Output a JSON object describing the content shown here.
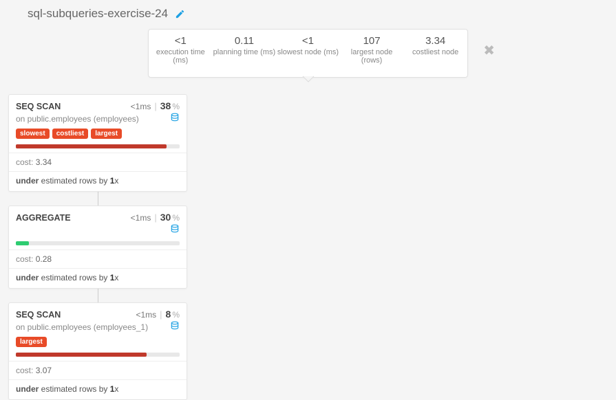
{
  "title": "sql-subqueries-exercise-24",
  "colors": {
    "edit_icon": "#1ca0e3",
    "disk_icon": "#1ca0e3",
    "tag_bg": "#e84b28",
    "bar_red": "#c0392b",
    "bar_green": "#2ecc71",
    "bar_track": "#e8e8e8"
  },
  "stats": [
    {
      "value": "<1",
      "label": "execution time (ms)"
    },
    {
      "value": "0.11",
      "label": "planning time (ms)"
    },
    {
      "value": "<1",
      "label": "slowest node (ms)"
    },
    {
      "value": "107",
      "label": "largest node (rows)"
    },
    {
      "value": "3.34",
      "label": "costliest node"
    }
  ],
  "nodes": [
    {
      "title": "SEQ SCAN",
      "time": "<1ms",
      "pct": "38",
      "sub": "on public.employees (employees)",
      "show_disk": true,
      "tags": [
        "slowest",
        "costliest",
        "largest"
      ],
      "bar_pct": 92,
      "bar_color": "#c0392b",
      "cost": "3.34",
      "est_prefix": "under",
      "est_mid": " estimated rows by ",
      "est_factor": "1",
      "est_suffix": "x"
    },
    {
      "title": "AGGREGATE",
      "time": "<1ms",
      "pct": "30",
      "sub": "",
      "show_disk": true,
      "tags": [],
      "bar_pct": 8,
      "bar_color": "#2ecc71",
      "cost": "0.28",
      "est_prefix": "under",
      "est_mid": " estimated rows by ",
      "est_factor": "1",
      "est_suffix": "x"
    },
    {
      "title": "SEQ SCAN",
      "time": "<1ms",
      "pct": "8",
      "sub": "on public.employees (employees_1)",
      "show_disk": true,
      "tags": [
        "largest"
      ],
      "bar_pct": 80,
      "bar_color": "#c0392b",
      "cost": "3.07",
      "est_prefix": "under",
      "est_mid": " estimated rows by ",
      "est_factor": "1",
      "est_suffix": "x"
    }
  ],
  "labels": {
    "cost_prefix": "cost: ",
    "pct_sign": " %"
  }
}
